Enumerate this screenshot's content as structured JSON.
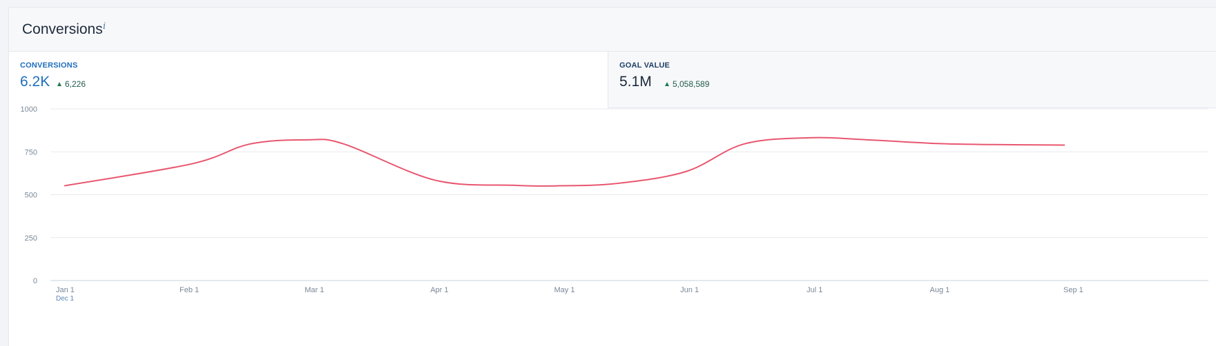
{
  "panel": {
    "title": "Conversions",
    "info_icon": "i"
  },
  "tabs": [
    {
      "label": "CONVERSIONS",
      "value": "6.2K",
      "delta": "6,226",
      "active": true
    },
    {
      "label": "GOAL VALUE",
      "value": "5.1M",
      "delta": "5,058,589",
      "active": false
    }
  ],
  "chart_data": {
    "type": "line",
    "title": "",
    "xlabel": "",
    "ylabel": "",
    "ylim": [
      0,
      1000
    ],
    "y_ticks": [
      0,
      250,
      500,
      750,
      1000
    ],
    "x_ticks": [
      "Jan 1",
      "Feb 1",
      "Mar 1",
      "Apr 1",
      "May 1",
      "Jun 1",
      "Jul 1",
      "Aug 1",
      "Sep 1"
    ],
    "x_subtick": "Dec 1",
    "grid": true,
    "series": [
      {
        "color": "#e8566f",
        "points": [
          {
            "x": "Jan 1",
            "y": 552
          },
          {
            "x": "Feb 1",
            "y": 680
          },
          {
            "x": "Feb 15",
            "y": 795
          },
          {
            "x": "Mar 1",
            "y": 820
          },
          {
            "x": "Mar 10",
            "y": 795
          },
          {
            "x": "Apr 1",
            "y": 585
          },
          {
            "x": "Apr 20",
            "y": 555
          },
          {
            "x": "May 1",
            "y": 552
          },
          {
            "x": "May 15",
            "y": 565
          },
          {
            "x": "Jun 1",
            "y": 635
          },
          {
            "x": "Jun 15",
            "y": 795
          },
          {
            "x": "Jul 1",
            "y": 832
          },
          {
            "x": "Jul 15",
            "y": 820
          },
          {
            "x": "Aug 1",
            "y": 798
          },
          {
            "x": "Aug 15",
            "y": 792
          },
          {
            "x": "Sep 1",
            "y": 789
          }
        ]
      }
    ]
  }
}
